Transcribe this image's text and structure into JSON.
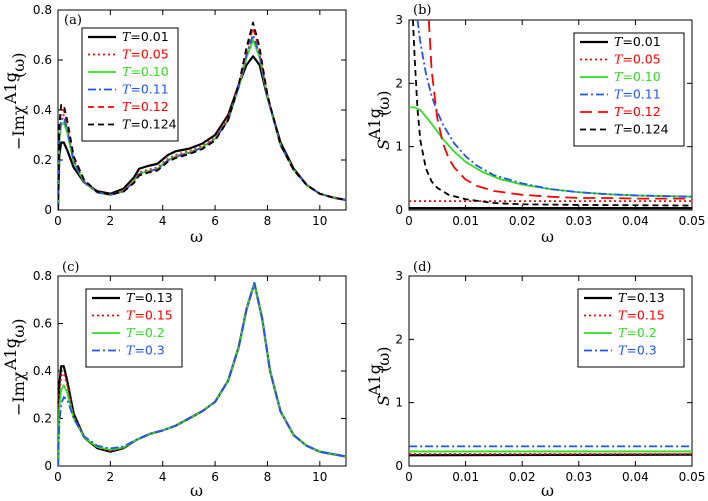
{
  "colors": {
    "black": "#000000",
    "red": "#ff0000",
    "green": "#33dd22",
    "blue": "#2255ee"
  },
  "chart_data": [
    {
      "id": "a",
      "panel_label": "(a)",
      "type": "line",
      "xlabel": "ω",
      "ylabel": "−Imχ^{A1g}(ω)",
      "xlim": [
        0,
        11
      ],
      "ylim": [
        0,
        0.8
      ],
      "xticks": [
        0,
        2,
        4,
        6,
        8,
        10
      ],
      "yticks": [
        0,
        0.2,
        0.4,
        0.6,
        0.8
      ],
      "legend_position": "top-left",
      "series": [
        {
          "name": "T=0.01",
          "color": "black",
          "dash": "solid",
          "width": 2.2,
          "x": [
            0,
            0.05,
            0.12,
            0.22,
            0.35,
            0.6,
            1.0,
            1.5,
            2.0,
            2.5,
            2.9,
            3.1,
            3.4,
            3.8,
            4.2,
            4.5,
            5.0,
            5.5,
            6.0,
            6.5,
            6.9,
            7.2,
            7.45,
            7.7,
            8.0,
            8.5,
            9.0,
            9.5,
            10.0,
            10.5,
            11.0
          ],
          "y": [
            0,
            0.22,
            0.27,
            0.27,
            0.24,
            0.17,
            0.11,
            0.075,
            0.065,
            0.085,
            0.13,
            0.165,
            0.175,
            0.185,
            0.22,
            0.235,
            0.245,
            0.265,
            0.3,
            0.38,
            0.5,
            0.58,
            0.615,
            0.58,
            0.45,
            0.27,
            0.165,
            0.1,
            0.065,
            0.05,
            0.04
          ]
        },
        {
          "name": "T=0.05",
          "color": "red",
          "dash": "dot",
          "width": 1.8,
          "x": [
            0,
            0.05,
            0.12,
            0.22,
            0.35,
            0.6,
            1.0,
            1.5,
            2.0,
            2.5,
            2.9,
            3.1,
            3.4,
            3.8,
            4.2,
            4.5,
            5.0,
            5.5,
            6.0,
            6.5,
            6.9,
            7.2,
            7.45,
            7.7,
            8.0,
            8.5,
            9.0,
            9.5,
            10.0,
            10.5,
            11.0
          ],
          "y": [
            0,
            0.3,
            0.37,
            0.38,
            0.33,
            0.2,
            0.115,
            0.072,
            0.062,
            0.078,
            0.12,
            0.15,
            0.16,
            0.17,
            0.205,
            0.22,
            0.235,
            0.255,
            0.29,
            0.37,
            0.5,
            0.62,
            0.7,
            0.62,
            0.46,
            0.26,
            0.16,
            0.1,
            0.065,
            0.05,
            0.04
          ]
        },
        {
          "name": "T=0.10",
          "color": "green",
          "dash": "solid",
          "width": 1.8,
          "x": [
            0,
            0.05,
            0.12,
            0.22,
            0.35,
            0.6,
            1.0,
            1.5,
            2.0,
            2.5,
            2.9,
            3.1,
            3.4,
            3.8,
            4.2,
            4.5,
            5.0,
            5.5,
            6.0,
            6.5,
            6.9,
            7.2,
            7.45,
            7.7,
            8.0,
            8.5,
            9.0,
            9.5,
            10.0,
            10.5,
            11.0
          ],
          "y": [
            0,
            0.28,
            0.34,
            0.35,
            0.31,
            0.19,
            0.11,
            0.07,
            0.06,
            0.075,
            0.115,
            0.145,
            0.155,
            0.165,
            0.2,
            0.215,
            0.23,
            0.25,
            0.285,
            0.36,
            0.49,
            0.61,
            0.68,
            0.61,
            0.45,
            0.26,
            0.16,
            0.1,
            0.065,
            0.05,
            0.04
          ]
        },
        {
          "name": "T=0.11",
          "color": "blue",
          "dash": "dashdot",
          "width": 1.8,
          "x": [
            0,
            0.05,
            0.12,
            0.22,
            0.35,
            0.6,
            1.0,
            1.5,
            2.0,
            2.5,
            2.9,
            3.1,
            3.4,
            3.8,
            4.2,
            4.5,
            5.0,
            5.5,
            6.0,
            6.5,
            6.9,
            7.2,
            7.45,
            7.7,
            8.0,
            8.5,
            9.0,
            9.5,
            10.0,
            10.5,
            11.0
          ],
          "y": [
            0,
            0.3,
            0.36,
            0.37,
            0.32,
            0.195,
            0.112,
            0.07,
            0.06,
            0.074,
            0.113,
            0.143,
            0.153,
            0.163,
            0.198,
            0.213,
            0.228,
            0.248,
            0.283,
            0.36,
            0.49,
            0.62,
            0.7,
            0.62,
            0.45,
            0.26,
            0.16,
            0.1,
            0.065,
            0.05,
            0.04
          ]
        },
        {
          "name": "T=0.12",
          "color": "red",
          "dash": "dash",
          "width": 1.8,
          "x": [
            0,
            0.05,
            0.12,
            0.22,
            0.35,
            0.6,
            1.0,
            1.5,
            2.0,
            2.5,
            2.9,
            3.1,
            3.4,
            3.8,
            4.2,
            4.5,
            5.0,
            5.5,
            6.0,
            6.5,
            6.9,
            7.2,
            7.45,
            7.7,
            8.0,
            8.5,
            9.0,
            9.5,
            10.0,
            10.5,
            11.0
          ],
          "y": [
            0,
            0.33,
            0.4,
            0.4,
            0.35,
            0.21,
            0.118,
            0.072,
            0.062,
            0.074,
            0.11,
            0.14,
            0.15,
            0.16,
            0.195,
            0.21,
            0.225,
            0.245,
            0.28,
            0.36,
            0.5,
            0.64,
            0.73,
            0.64,
            0.46,
            0.26,
            0.16,
            0.1,
            0.065,
            0.05,
            0.04
          ]
        },
        {
          "name": "T=0.124",
          "color": "black",
          "dash": "dash",
          "width": 1.8,
          "x": [
            0,
            0.05,
            0.12,
            0.22,
            0.35,
            0.6,
            1.0,
            1.5,
            2.0,
            2.5,
            2.9,
            3.1,
            3.4,
            3.8,
            4.2,
            4.5,
            5.0,
            5.5,
            6.0,
            6.5,
            6.9,
            7.2,
            7.45,
            7.7,
            8.0,
            8.5,
            9.0,
            9.5,
            10.0,
            10.5,
            11.0
          ],
          "y": [
            0,
            0.34,
            0.42,
            0.42,
            0.36,
            0.215,
            0.12,
            0.073,
            0.062,
            0.073,
            0.108,
            0.138,
            0.148,
            0.158,
            0.193,
            0.208,
            0.223,
            0.243,
            0.278,
            0.36,
            0.5,
            0.65,
            0.75,
            0.65,
            0.46,
            0.26,
            0.16,
            0.1,
            0.065,
            0.05,
            0.04
          ]
        }
      ]
    },
    {
      "id": "b",
      "panel_label": "(b)",
      "type": "line",
      "xlabel": "ω",
      "ylabel": "S^{A1g}(ω)",
      "xlim": [
        0,
        0.05
      ],
      "ylim": [
        0,
        3
      ],
      "xticks": [
        0,
        0.01,
        0.02,
        0.03,
        0.04,
        0.05
      ],
      "yticks": [
        0,
        1,
        2,
        3
      ],
      "legend_position": "top-right",
      "series": [
        {
          "name": "T=0.01",
          "color": "black",
          "dash": "solid",
          "width": 2.2,
          "x": [
            0,
            0.05
          ],
          "y": [
            0.03,
            0.03
          ]
        },
        {
          "name": "T=0.05",
          "color": "red",
          "dash": "dot",
          "width": 1.8,
          "x": [
            0,
            0.05
          ],
          "y": [
            0.14,
            0.14
          ]
        },
        {
          "name": "T=0.10",
          "color": "green",
          "dash": "solid",
          "width": 1.8,
          "x": [
            0,
            0.001,
            0.002,
            0.004,
            0.006,
            0.008,
            0.01,
            0.013,
            0.016,
            0.02,
            0.025,
            0.03,
            0.035,
            0.04,
            0.045,
            0.05
          ],
          "y": [
            1.62,
            1.62,
            1.58,
            1.36,
            1.12,
            0.92,
            0.76,
            0.6,
            0.49,
            0.4,
            0.33,
            0.28,
            0.25,
            0.23,
            0.22,
            0.21
          ]
        },
        {
          "name": "T=0.11",
          "color": "blue",
          "dash": "dashdot",
          "width": 1.8,
          "x": [
            0.0015,
            0.002,
            0.003,
            0.004,
            0.005,
            0.006,
            0.008,
            0.01,
            0.012,
            0.015,
            0.02,
            0.025,
            0.03,
            0.035,
            0.04,
            0.045,
            0.05
          ],
          "y": [
            3.0,
            2.65,
            2.15,
            1.8,
            1.55,
            1.35,
            1.05,
            0.85,
            0.7,
            0.55,
            0.42,
            0.33,
            0.28,
            0.25,
            0.23,
            0.22,
            0.21
          ]
        },
        {
          "name": "T=0.12",
          "color": "red",
          "dash": "longdash",
          "width": 1.8,
          "x": [
            0.0035,
            0.004,
            0.005,
            0.006,
            0.007,
            0.008,
            0.01,
            0.012,
            0.015,
            0.02,
            0.025,
            0.03,
            0.035,
            0.04,
            0.045,
            0.05
          ],
          "y": [
            3.0,
            2.2,
            1.45,
            1.05,
            0.82,
            0.67,
            0.48,
            0.38,
            0.3,
            0.24,
            0.21,
            0.19,
            0.19,
            0.18,
            0.18,
            0.18
          ]
        },
        {
          "name": "T=0.124",
          "color": "black",
          "dash": "dash",
          "width": 1.8,
          "x": [
            0.0007,
            0.001,
            0.0015,
            0.002,
            0.003,
            0.004,
            0.005,
            0.007,
            0.01,
            0.015,
            0.02,
            0.03,
            0.04,
            0.05
          ],
          "y": [
            3.0,
            2.4,
            1.6,
            1.1,
            0.65,
            0.45,
            0.35,
            0.24,
            0.17,
            0.11,
            0.09,
            0.08,
            0.075,
            0.07
          ]
        }
      ]
    },
    {
      "id": "c",
      "panel_label": "(c)",
      "type": "line",
      "xlabel": "ω",
      "ylabel": "−Imχ^{A1g}(ω)",
      "xlim": [
        0,
        11
      ],
      "ylim": [
        0,
        0.8
      ],
      "xticks": [
        0,
        2,
        4,
        6,
        8,
        10
      ],
      "yticks": [
        0,
        0.2,
        0.4,
        0.6,
        0.8
      ],
      "legend_position": "top-left",
      "series": [
        {
          "name": "T=0.13",
          "color": "black",
          "dash": "solid",
          "width": 2.2,
          "x": [
            0,
            0.05,
            0.12,
            0.22,
            0.35,
            0.6,
            1.0,
            1.5,
            2.0,
            2.5,
            3.0,
            3.5,
            4.0,
            4.5,
            5.0,
            5.5,
            6.0,
            6.5,
            6.9,
            7.2,
            7.5,
            7.8,
            8.1,
            8.5,
            9.0,
            9.5,
            10.0,
            10.5,
            11.0
          ],
          "y": [
            0,
            0.34,
            0.42,
            0.42,
            0.36,
            0.22,
            0.12,
            0.075,
            0.06,
            0.075,
            0.11,
            0.135,
            0.15,
            0.17,
            0.2,
            0.23,
            0.27,
            0.36,
            0.5,
            0.66,
            0.77,
            0.62,
            0.4,
            0.23,
            0.13,
            0.085,
            0.06,
            0.05,
            0.04
          ]
        },
        {
          "name": "T=0.15",
          "color": "red",
          "dash": "dot",
          "width": 1.8,
          "x": [
            0,
            0.05,
            0.12,
            0.22,
            0.35,
            0.6,
            1.0,
            1.5,
            2.0,
            2.5,
            3.0,
            3.5,
            4.0,
            4.5,
            5.0,
            5.5,
            6.0,
            6.5,
            6.9,
            7.2,
            7.5,
            7.8,
            8.1,
            8.5,
            9.0,
            9.5,
            10.0,
            10.5,
            11.0
          ],
          "y": [
            0,
            0.3,
            0.38,
            0.39,
            0.34,
            0.21,
            0.12,
            0.078,
            0.063,
            0.076,
            0.11,
            0.135,
            0.15,
            0.17,
            0.2,
            0.23,
            0.27,
            0.36,
            0.5,
            0.66,
            0.77,
            0.62,
            0.4,
            0.23,
            0.13,
            0.085,
            0.06,
            0.05,
            0.04
          ]
        },
        {
          "name": "T=0.2",
          "color": "green",
          "dash": "solid",
          "width": 1.8,
          "x": [
            0,
            0.05,
            0.12,
            0.22,
            0.35,
            0.6,
            1.0,
            1.5,
            2.0,
            2.5,
            3.0,
            3.5,
            4.0,
            4.5,
            5.0,
            5.5,
            6.0,
            6.5,
            6.9,
            7.2,
            7.5,
            7.8,
            8.1,
            8.5,
            9.0,
            9.5,
            10.0,
            10.5,
            11.0
          ],
          "y": [
            0,
            0.24,
            0.32,
            0.34,
            0.31,
            0.2,
            0.12,
            0.08,
            0.068,
            0.078,
            0.11,
            0.135,
            0.15,
            0.17,
            0.2,
            0.23,
            0.27,
            0.36,
            0.5,
            0.66,
            0.77,
            0.62,
            0.4,
            0.23,
            0.13,
            0.085,
            0.06,
            0.05,
            0.04
          ]
        },
        {
          "name": "T=0.3",
          "color": "blue",
          "dash": "dashdot",
          "width": 1.8,
          "x": [
            0,
            0.05,
            0.12,
            0.22,
            0.35,
            0.6,
            1.0,
            1.5,
            2.0,
            2.5,
            3.0,
            3.5,
            4.0,
            4.5,
            5.0,
            5.5,
            6.0,
            6.5,
            6.9,
            7.2,
            7.5,
            7.8,
            8.1,
            8.5,
            9.0,
            9.5,
            10.0,
            10.5,
            11.0
          ],
          "y": [
            0,
            0.18,
            0.26,
            0.29,
            0.28,
            0.2,
            0.125,
            0.085,
            0.074,
            0.082,
            0.112,
            0.135,
            0.15,
            0.17,
            0.2,
            0.23,
            0.27,
            0.36,
            0.5,
            0.66,
            0.77,
            0.62,
            0.4,
            0.23,
            0.13,
            0.085,
            0.06,
            0.05,
            0.04
          ]
        }
      ]
    },
    {
      "id": "d",
      "panel_label": "(d)",
      "type": "line",
      "xlabel": "ω",
      "ylabel": "S^{A1g}(ω)",
      "xlim": [
        0,
        0.05
      ],
      "ylim": [
        0,
        3
      ],
      "xticks": [
        0,
        0.01,
        0.02,
        0.03,
        0.04,
        0.05
      ],
      "yticks": [
        0,
        1,
        2,
        3
      ],
      "legend_position": "top-right",
      "series": [
        {
          "name": "T=0.13",
          "color": "black",
          "dash": "solid",
          "width": 2.2,
          "x": [
            0,
            0.05
          ],
          "y": [
            0.17,
            0.18
          ]
        },
        {
          "name": "T=0.15",
          "color": "red",
          "dash": "dot",
          "width": 1.8,
          "x": [
            0,
            0.05
          ],
          "y": [
            0.19,
            0.19
          ]
        },
        {
          "name": "T=0.2",
          "color": "green",
          "dash": "solid",
          "width": 1.8,
          "x": [
            0,
            0.05
          ],
          "y": [
            0.23,
            0.23
          ]
        },
        {
          "name": "T=0.3",
          "color": "blue",
          "dash": "dashdot",
          "width": 1.8,
          "x": [
            0,
            0.05
          ],
          "y": [
            0.31,
            0.31
          ]
        }
      ]
    }
  ]
}
